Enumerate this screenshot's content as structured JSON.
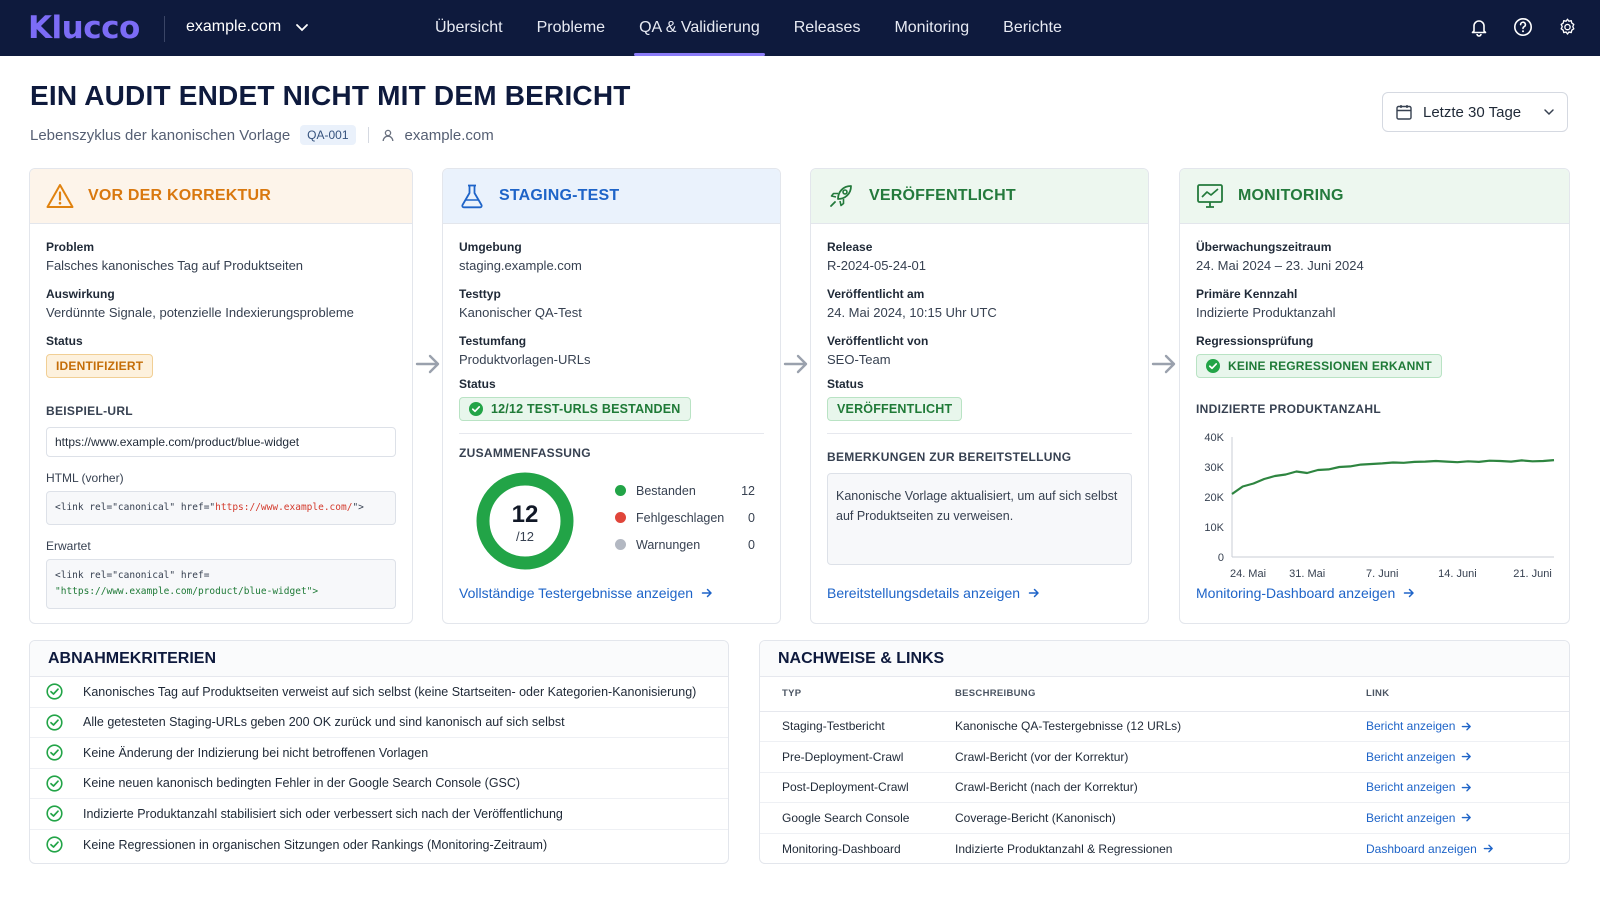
{
  "nav": {
    "logo": "Klucco",
    "domain": "example.com",
    "items": [
      {
        "label": "Übersicht",
        "active": false
      },
      {
        "label": "Probleme",
        "active": false
      },
      {
        "label": "QA & Validierung",
        "active": true
      },
      {
        "label": "Releases",
        "active": false
      },
      {
        "label": "Monitoring",
        "active": false
      },
      {
        "label": "Berichte",
        "active": false
      }
    ],
    "icons": [
      "bell-icon",
      "help-icon",
      "gear-icon"
    ]
  },
  "header": {
    "title": "EIN AUDIT ENDET NICHT MIT DEM BERICHT",
    "subtitle": "Lebenszyklus der kanonischen Vorlage",
    "code": "QA-001",
    "site": "example.com",
    "date_filter": "Letzte 30 Tage"
  },
  "stages": {
    "before": {
      "title": "VOR DER KORREKTUR",
      "problem_label": "Problem",
      "problem_value": "Falsches kanonisches Tag auf Produktseiten",
      "impact_label": "Auswirkung",
      "impact_value": "Verdünnte Signale, potenzielle Indexierungsprobleme",
      "status_label": "Status",
      "status_value": "IDENTIFIZIERT",
      "example_url_label": "BEISPIEL-URL",
      "example_url": "https://www.example.com/product/blue-widget",
      "html_before_label": "HTML (vorher)",
      "html_before_prefix": "<link rel=\"canonical\" href=\"",
      "html_before_url": "https://www.example.com/",
      "html_before_suffix": "\">",
      "expected_label": "Erwartet",
      "expected_prefix": "<link rel=\"canonical\" href=",
      "expected_url": "\"https://www.example.com/product/blue-widget\">"
    },
    "staging": {
      "title": "STAGING-TEST",
      "env_label": "Umgebung",
      "env_value": "staging.example.com",
      "type_label": "Testtyp",
      "type_value": "Kanonischer QA-Test",
      "scope_label": "Testumfang",
      "scope_value": "Produktvorlagen-URLs",
      "status_label": "Status",
      "status_value": "12/12 TEST-URLS BESTANDEN",
      "summary_label": "ZUSAMMENFASSUNG",
      "donut_value": "12",
      "donut_total": "/12",
      "legend": [
        {
          "label": "Bestanden",
          "value": "12",
          "color": "#22a447"
        },
        {
          "label": "Fehlgeschlagen",
          "value": "0",
          "color": "#e0453a"
        },
        {
          "label": "Warnungen",
          "value": "0",
          "color": "#b3b8c2"
        }
      ],
      "link": "Vollständige Testergebnisse anzeigen"
    },
    "published": {
      "title": "VERÖFFENTLICHT",
      "release_label": "Release",
      "release_value": "R-2024-05-24-01",
      "date_label": "Veröffentlicht am",
      "date_value": "24. Mai 2024, 10:15 Uhr UTC",
      "by_label": "Veröffentlicht von",
      "by_value": "SEO-Team",
      "status_label": "Status",
      "status_value": "VERÖFFENTLICHT",
      "notes_label": "BEMERKUNGEN ZUR BEREITSTELLUNG",
      "notes_value": "Kanonische Vorlage aktualisiert, um auf sich selbst auf Produktseiten zu verweisen.",
      "link": "Bereitstellungsdetails anzeigen"
    },
    "monitoring": {
      "title": "MONITORING",
      "period_label": "Überwachungszeitraum",
      "period_value": "24. Mai 2024 – 23. Juni 2024",
      "kpi_label": "Primäre Kennzahl",
      "kpi_value": "Indizierte Produktanzahl",
      "regression_label": "Regressionsprüfung",
      "regression_value": "KEINE REGRESSIONEN ERKANNT",
      "chart_label": "INDIZIERTE PRODUKTANZAHL",
      "link": "Monitoring-Dashboard anzeigen"
    }
  },
  "chart_data": {
    "type": "line",
    "title": "INDIZIERTE PRODUKTANZAHL",
    "xlabel": "",
    "ylabel": "",
    "y_ticks": [
      "40K",
      "30K",
      "20K",
      "10K",
      "0"
    ],
    "ylim": [
      0,
      40000
    ],
    "x_ticks": [
      "24. Mai",
      "31. Mai",
      "7. Juni",
      "14. Juni",
      "21. Juni"
    ],
    "x": [
      0,
      1,
      2,
      3,
      4,
      5,
      6,
      7,
      8,
      9,
      10,
      11,
      12,
      13,
      14,
      15,
      16,
      17,
      18,
      19,
      20,
      21,
      22,
      23,
      24,
      25,
      26,
      27,
      28,
      29,
      30
    ],
    "values": [
      21000,
      23500,
      24500,
      26000,
      27000,
      27500,
      28500,
      28000,
      29000,
      29200,
      30000,
      30200,
      30800,
      31000,
      31200,
      31500,
      31400,
      31700,
      31800,
      32000,
      31800,
      31600,
      31900,
      31700,
      32100,
      32000,
      31800,
      32200,
      31900,
      32000,
      32300
    ],
    "color": "#2e8540",
    "grid": false
  },
  "criteria": {
    "title": "ABNAHMEKRITERIEN",
    "items": [
      "Kanonisches Tag auf Produktseiten verweist auf sich selbst (keine Startseiten- oder Kategorien-Kanonisierung)",
      "Alle getesteten Staging-URLs geben 200 OK zurück und sind kanonisch auf sich selbst",
      "Keine Änderung der Indizierung bei nicht betroffenen Vorlagen",
      "Keine neuen kanonisch bedingten Fehler in der Google Search Console (GSC)",
      "Indizierte Produktanzahl stabilisiert sich oder verbessert sich nach der Veröffentlichung",
      "Keine Regressionen in organischen Sitzungen oder Rankings (Monitoring-Zeitraum)"
    ]
  },
  "evidence": {
    "title": "NACHWEISE & LINKS",
    "columns": [
      "TYP",
      "BESCHREIBUNG",
      "LINK"
    ],
    "rows": [
      {
        "type": "Staging-Testbericht",
        "desc": "Kanonische QA-Testergebnisse (12 URLs)",
        "link": "Bericht anzeigen"
      },
      {
        "type": "Pre-Deployment-Crawl",
        "desc": "Crawl-Bericht (vor der Korrektur)",
        "link": "Bericht anzeigen"
      },
      {
        "type": "Post-Deployment-Crawl",
        "desc": "Crawl-Bericht (nach der Korrektur)",
        "link": "Bericht anzeigen"
      },
      {
        "type": "Google Search Console",
        "desc": "Coverage-Bericht (Kanonisch)",
        "link": "Bericht anzeigen"
      },
      {
        "type": "Monitoring-Dashboard",
        "desc": "Indizierte Produktanzahl & Regressionen",
        "link": "Dashboard anzeigen"
      }
    ]
  }
}
